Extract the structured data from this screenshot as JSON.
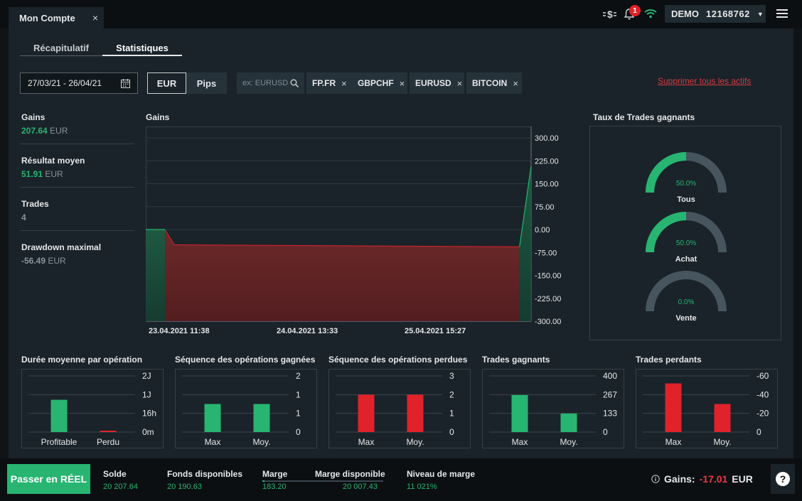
{
  "window": {
    "tab_title": "Mon Compte",
    "close_glyph": "×"
  },
  "topbar": {
    "notifications_count": "1",
    "account_type": "DEMO",
    "account_number": "12168762",
    "icons": [
      "currency-exchange-icon",
      "bell-icon",
      "wifi-icon",
      "hamburger-menu-icon"
    ]
  },
  "subtabs": [
    {
      "label": "Récapitulatif"
    },
    {
      "label": "Statistiques",
      "active": true
    }
  ],
  "filters": {
    "date_range": "27/03/21 - 26/04/21",
    "unit_options": [
      "EUR",
      "Pips"
    ],
    "selected_unit": "EUR",
    "search_placeholder": "ex: EURUSD",
    "assets": [
      "FP.FR",
      "GBPCHF",
      "EURUSD",
      "BITCOIN"
    ],
    "remove_all": "Supprimer tous les actifs"
  },
  "stats": {
    "gains_label": "Gains",
    "gains_value": "207.64",
    "gains_unit": "EUR",
    "avg_label": "Résultat moyen",
    "avg_value": "51.91",
    "avg_unit": "EUR",
    "trades_label": "Trades",
    "trades_value": "4",
    "drawdown_label": "Drawdown maximal",
    "drawdown_value": "-56.49",
    "drawdown_unit": "EUR"
  },
  "colors": {
    "green": "#27b571",
    "red": "#e0222a",
    "panel": "#1a2329",
    "gauge_track": "#47555e"
  },
  "chart_data": [
    {
      "type": "area",
      "title": "Gains",
      "x_tick_labels": [
        "23.04.2021 11:38",
        "24.04.2021 13:33",
        "25.04.2021 15:27"
      ],
      "y_tick_labels": [
        "300.00",
        "225.00",
        "150.00",
        "75.00",
        "0.00",
        "-75.00",
        "-150.00",
        "-225.00",
        "-300.00"
      ],
      "ylim": [
        -300,
        300
      ],
      "x": [
        0,
        1,
        2,
        3,
        4
      ],
      "values": [
        0,
        0,
        -50,
        -56.49,
        207.64
      ],
      "x_fraction": [
        0.0,
        0.05,
        0.074,
        0.97,
        1.0
      ],
      "grid": true
    },
    {
      "type": "gauge",
      "title": "Taux de Trades gagnants",
      "items": [
        {
          "label": "Tous",
          "value": 50.0,
          "text": "50.0%"
        },
        {
          "label": "Achat",
          "value": 50.0,
          "text": "50.0%"
        },
        {
          "label": "Vente",
          "value": 0.0,
          "text": "0.0%"
        }
      ]
    },
    {
      "type": "bar",
      "title": "Durée moyenne par opération",
      "categories": [
        "Profitable",
        "Perdu"
      ],
      "values": [
        1.15,
        0.05
      ],
      "ylim": [
        0,
        2
      ],
      "y_tick_labels": [
        "2J",
        "1J",
        "16h",
        "0m"
      ],
      "colors": [
        "#27b571",
        "#e0222a"
      ]
    },
    {
      "type": "bar",
      "title": "Séquence des opérations gagnées",
      "categories": [
        "Max",
        "Moy."
      ],
      "values": [
        1.5,
        1.5
      ],
      "ylim": [
        0,
        3
      ],
      "y_tick_labels": [
        "2",
        "1",
        "1",
        "0"
      ],
      "colors": [
        "#27b571",
        "#27b571"
      ]
    },
    {
      "type": "bar",
      "title": "Séquence des opérations perdues",
      "categories": [
        "Max",
        "Moy."
      ],
      "values": [
        2,
        2
      ],
      "ylim": [
        0,
        3
      ],
      "y_tick_labels": [
        "3",
        "2",
        "1",
        "0"
      ],
      "colors": [
        "#e0222a",
        "#e0222a"
      ]
    },
    {
      "type": "bar",
      "title": "Trades gagnants",
      "categories": [
        "Max",
        "Moy."
      ],
      "values": [
        264,
        132
      ],
      "ylim": [
        0,
        400
      ],
      "y_tick_labels": [
        "400",
        "267",
        "133",
        "0"
      ],
      "colors": [
        "#27b571",
        "#27b571"
      ]
    },
    {
      "type": "bar",
      "title": "Trades perdants",
      "categories": [
        "Max",
        "Moy."
      ],
      "values": [
        52,
        30
      ],
      "ylim": [
        0,
        60
      ],
      "y_tick_labels": [
        "-60",
        "-40",
        "-20",
        "0"
      ],
      "colors": [
        "#e0222a",
        "#e0222a"
      ]
    }
  ],
  "bottombar": {
    "go_real_label": "Passer en RÉEL",
    "solde_label": "Solde",
    "solde_value": "20 207.64",
    "fonds_label": "Fonds disponibles",
    "fonds_value": "20 190.63",
    "marge_label": "Marge",
    "marge_value": "183.20",
    "marge_dispo_label": "Marge disponible",
    "marge_dispo_value": "20 007.43",
    "niveau_label": "Niveau de marge",
    "niveau_value": "11 021%",
    "gains_label": "Gains:",
    "gains_value": "-17.01",
    "gains_unit": "EUR",
    "help_label": "?"
  }
}
